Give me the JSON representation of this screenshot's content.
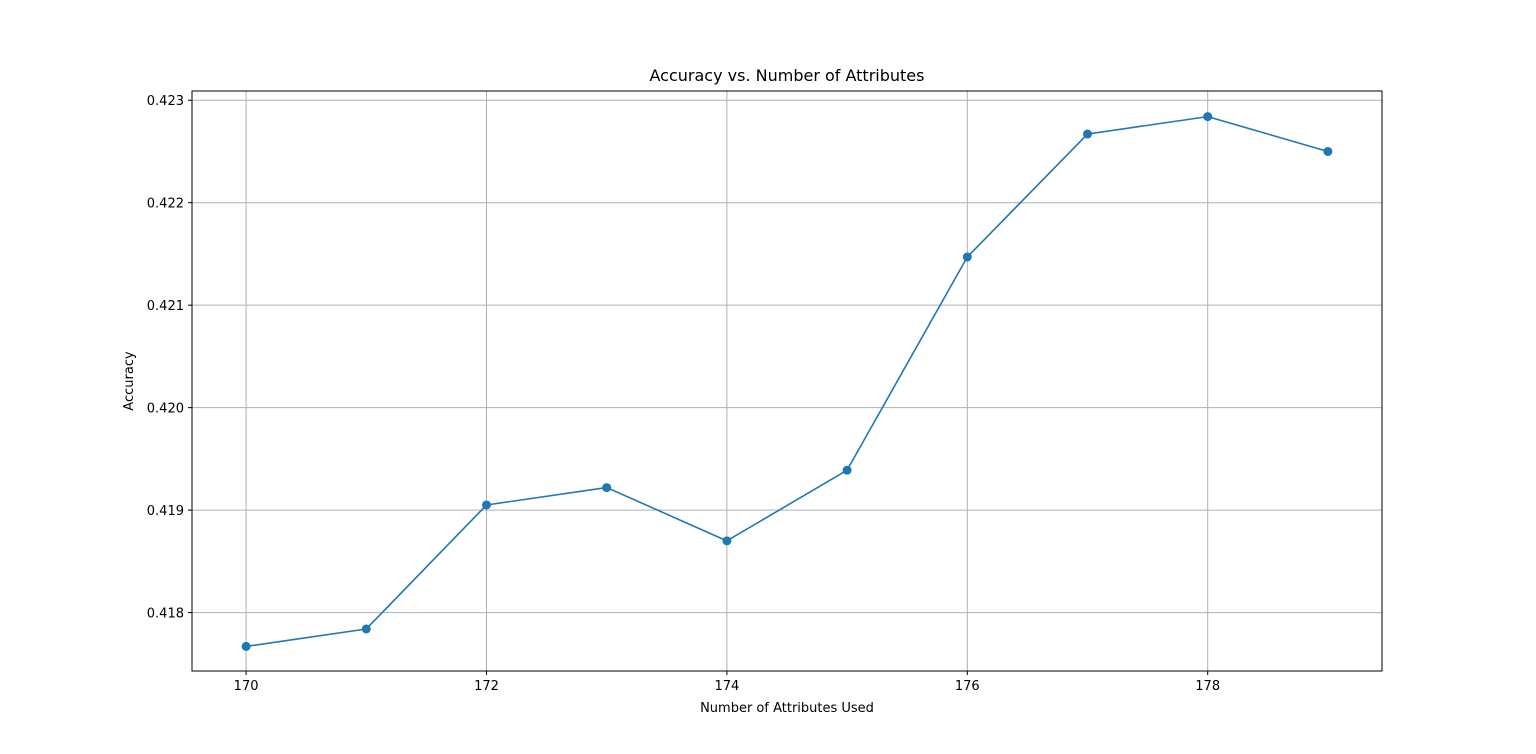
{
  "chart_data": {
    "type": "line",
    "title": "Accuracy vs. Number of Attributes",
    "xlabel": "Number of Attributes Used",
    "ylabel": "Accuracy",
    "x": [
      170,
      171,
      172,
      173,
      174,
      175,
      176,
      177,
      178,
      179
    ],
    "series": [
      {
        "values": [
          0.41767,
          0.41784,
          0.41905,
          0.41922,
          0.4187,
          0.41939,
          0.42147,
          0.42267,
          0.42284,
          0.4225
        ]
      }
    ],
    "xlim": [
      169.55,
      179.45
    ],
    "ylim": [
      0.41743,
      0.42309
    ],
    "xticks": [
      170,
      172,
      174,
      176,
      178
    ],
    "xtick_labels": [
      "170",
      "172",
      "174",
      "176",
      "178"
    ],
    "yticks": [
      0.418,
      0.419,
      0.42,
      0.421,
      0.422,
      0.423
    ],
    "ytick_labels": [
      "0.418",
      "0.419",
      "0.420",
      "0.421",
      "0.422",
      "0.423"
    ],
    "grid": true,
    "line_color": "#1f77b4",
    "grid_color": "#b0b0b0",
    "marker": "circle"
  }
}
